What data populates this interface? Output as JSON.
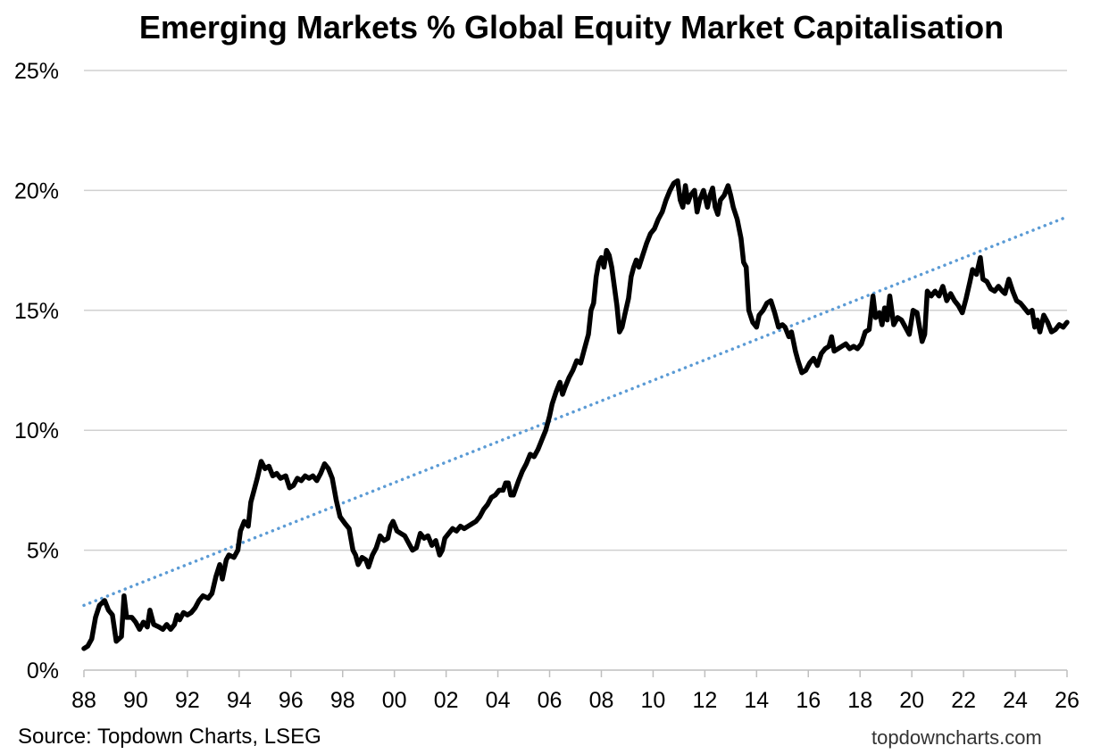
{
  "chart_data": {
    "type": "line",
    "title": "Emerging Markets % Global Equity Market Capitalisation",
    "xlabel": "",
    "ylabel": "",
    "x_tick_labels": [
      "88",
      "90",
      "92",
      "94",
      "96",
      "98",
      "00",
      "02",
      "04",
      "06",
      "08",
      "10",
      "12",
      "14",
      "16",
      "18",
      "20",
      "22",
      "24",
      "26"
    ],
    "x_ticks": [
      1988,
      1990,
      1992,
      1994,
      1996,
      1998,
      2000,
      2002,
      2004,
      2006,
      2008,
      2010,
      2012,
      2014,
      2016,
      2018,
      2020,
      2022,
      2024,
      2026
    ],
    "xlim": [
      1988,
      2026
    ],
    "y_tick_labels": [
      "0%",
      "5%",
      "10%",
      "15%",
      "20%",
      "25%"
    ],
    "y_ticks": [
      0,
      5,
      10,
      15,
      20,
      25
    ],
    "ylim": [
      0,
      25
    ],
    "grid": "horizontal",
    "series": [
      {
        "line_color": "#000000",
        "style": "solid",
        "points": [
          [
            1988.0,
            0.9
          ],
          [
            1988.15,
            1.0
          ],
          [
            1988.3,
            1.3
          ],
          [
            1988.45,
            2.2
          ],
          [
            1988.6,
            2.7
          ],
          [
            1988.8,
            2.9
          ],
          [
            1988.95,
            2.5
          ],
          [
            1989.1,
            2.3
          ],
          [
            1989.25,
            1.2
          ],
          [
            1989.45,
            1.4
          ],
          [
            1989.55,
            3.1
          ],
          [
            1989.65,
            2.2
          ],
          [
            1989.85,
            2.2
          ],
          [
            1990.0,
            2.0
          ],
          [
            1990.15,
            1.7
          ],
          [
            1990.3,
            2.0
          ],
          [
            1990.45,
            1.8
          ],
          [
            1990.55,
            2.5
          ],
          [
            1990.7,
            1.9
          ],
          [
            1990.9,
            1.8
          ],
          [
            1991.05,
            1.7
          ],
          [
            1991.2,
            1.9
          ],
          [
            1991.35,
            1.7
          ],
          [
            1991.5,
            1.9
          ],
          [
            1991.6,
            2.3
          ],
          [
            1991.7,
            2.1
          ],
          [
            1991.85,
            2.4
          ],
          [
            1992.0,
            2.3
          ],
          [
            1992.15,
            2.4
          ],
          [
            1992.3,
            2.6
          ],
          [
            1992.45,
            2.9
          ],
          [
            1992.6,
            3.1
          ],
          [
            1992.8,
            3.0
          ],
          [
            1992.95,
            3.2
          ],
          [
            1993.1,
            3.9
          ],
          [
            1993.25,
            4.4
          ],
          [
            1993.35,
            3.8
          ],
          [
            1993.5,
            4.6
          ],
          [
            1993.6,
            4.8
          ],
          [
            1993.8,
            4.7
          ],
          [
            1993.95,
            5.0
          ],
          [
            1994.05,
            5.8
          ],
          [
            1994.2,
            6.2
          ],
          [
            1994.35,
            6.0
          ],
          [
            1994.45,
            7.0
          ],
          [
            1994.55,
            7.4
          ],
          [
            1994.7,
            8.0
          ],
          [
            1994.85,
            8.7
          ],
          [
            1995.0,
            8.4
          ],
          [
            1995.15,
            8.5
          ],
          [
            1995.3,
            8.1
          ],
          [
            1995.45,
            8.2
          ],
          [
            1995.6,
            8.0
          ],
          [
            1995.8,
            8.1
          ],
          [
            1995.95,
            7.6
          ],
          [
            1996.1,
            7.7
          ],
          [
            1996.25,
            8.0
          ],
          [
            1996.4,
            7.9
          ],
          [
            1996.55,
            8.1
          ],
          [
            1996.7,
            8.0
          ],
          [
            1996.85,
            8.1
          ],
          [
            1997.0,
            7.9
          ],
          [
            1997.15,
            8.2
          ],
          [
            1997.3,
            8.6
          ],
          [
            1997.45,
            8.4
          ],
          [
            1997.6,
            8.0
          ],
          [
            1997.75,
            7.1
          ],
          [
            1997.9,
            6.4
          ],
          [
            1998.1,
            6.1
          ],
          [
            1998.25,
            5.9
          ],
          [
            1998.4,
            5.0
          ],
          [
            1998.5,
            4.8
          ],
          [
            1998.6,
            4.4
          ],
          [
            1998.75,
            4.7
          ],
          [
            1998.9,
            4.6
          ],
          [
            1999.0,
            4.3
          ],
          [
            1999.15,
            4.8
          ],
          [
            1999.3,
            5.1
          ],
          [
            1999.45,
            5.6
          ],
          [
            1999.6,
            5.4
          ],
          [
            1999.75,
            5.5
          ],
          [
            1999.85,
            6.0
          ],
          [
            1999.95,
            6.2
          ],
          [
            2000.1,
            5.8
          ],
          [
            2000.25,
            5.7
          ],
          [
            2000.4,
            5.6
          ],
          [
            2000.55,
            5.3
          ],
          [
            2000.7,
            5.0
          ],
          [
            2000.85,
            5.1
          ],
          [
            2001.0,
            5.7
          ],
          [
            2001.15,
            5.5
          ],
          [
            2001.3,
            5.6
          ],
          [
            2001.45,
            5.2
          ],
          [
            2001.6,
            5.4
          ],
          [
            2001.75,
            4.8
          ],
          [
            2001.85,
            5.0
          ],
          [
            2001.95,
            5.5
          ],
          [
            2002.1,
            5.7
          ],
          [
            2002.25,
            5.9
          ],
          [
            2002.4,
            5.8
          ],
          [
            2002.55,
            6.0
          ],
          [
            2002.7,
            5.9
          ],
          [
            2002.85,
            6.0
          ],
          [
            2003.0,
            6.1
          ],
          [
            2003.15,
            6.2
          ],
          [
            2003.3,
            6.4
          ],
          [
            2003.45,
            6.7
          ],
          [
            2003.6,
            6.9
          ],
          [
            2003.75,
            7.2
          ],
          [
            2003.9,
            7.3
          ],
          [
            2004.05,
            7.5
          ],
          [
            2004.2,
            7.5
          ],
          [
            2004.3,
            7.8
          ],
          [
            2004.4,
            7.8
          ],
          [
            2004.5,
            7.3
          ],
          [
            2004.6,
            7.3
          ],
          [
            2004.8,
            7.9
          ],
          [
            2004.95,
            8.3
          ],
          [
            2005.1,
            8.6
          ],
          [
            2005.25,
            9.0
          ],
          [
            2005.4,
            8.9
          ],
          [
            2005.55,
            9.2
          ],
          [
            2005.7,
            9.6
          ],
          [
            2005.85,
            10.0
          ],
          [
            2006.0,
            10.6
          ],
          [
            2006.1,
            11.1
          ],
          [
            2006.25,
            11.6
          ],
          [
            2006.4,
            12.0
          ],
          [
            2006.5,
            11.5
          ],
          [
            2006.6,
            11.8
          ],
          [
            2006.75,
            12.2
          ],
          [
            2006.9,
            12.5
          ],
          [
            2007.05,
            12.9
          ],
          [
            2007.2,
            12.8
          ],
          [
            2007.35,
            13.4
          ],
          [
            2007.5,
            14.0
          ],
          [
            2007.6,
            15.0
          ],
          [
            2007.7,
            15.3
          ],
          [
            2007.8,
            16.4
          ],
          [
            2007.9,
            17.0
          ],
          [
            2008.0,
            17.2
          ],
          [
            2008.1,
            16.8
          ],
          [
            2008.2,
            17.5
          ],
          [
            2008.3,
            17.3
          ],
          [
            2008.4,
            16.8
          ],
          [
            2008.5,
            16.0
          ],
          [
            2008.6,
            15.2
          ],
          [
            2008.7,
            14.1
          ],
          [
            2008.8,
            14.3
          ],
          [
            2008.9,
            14.8
          ],
          [
            2009.05,
            15.5
          ],
          [
            2009.15,
            16.4
          ],
          [
            2009.25,
            16.8
          ],
          [
            2009.35,
            17.1
          ],
          [
            2009.45,
            16.8
          ],
          [
            2009.6,
            17.3
          ],
          [
            2009.75,
            17.8
          ],
          [
            2009.9,
            18.2
          ],
          [
            2010.05,
            18.4
          ],
          [
            2010.2,
            18.8
          ],
          [
            2010.35,
            19.1
          ],
          [
            2010.5,
            19.6
          ],
          [
            2010.65,
            20.0
          ],
          [
            2010.8,
            20.3
          ],
          [
            2010.95,
            20.4
          ],
          [
            2011.05,
            19.6
          ],
          [
            2011.15,
            19.3
          ],
          [
            2011.25,
            20.2
          ],
          [
            2011.35,
            19.5
          ],
          [
            2011.45,
            19.8
          ],
          [
            2011.6,
            20.0
          ],
          [
            2011.7,
            19.1
          ],
          [
            2011.8,
            19.6
          ],
          [
            2011.95,
            20.0
          ],
          [
            2012.1,
            19.3
          ],
          [
            2012.2,
            19.8
          ],
          [
            2012.3,
            20.1
          ],
          [
            2012.4,
            19.3
          ],
          [
            2012.5,
            19.0
          ],
          [
            2012.6,
            19.6
          ],
          [
            2012.75,
            19.8
          ],
          [
            2012.9,
            20.2
          ],
          [
            2013.0,
            19.8
          ],
          [
            2013.1,
            19.3
          ],
          [
            2013.25,
            18.8
          ],
          [
            2013.4,
            18.0
          ],
          [
            2013.5,
            17.0
          ],
          [
            2013.6,
            16.8
          ],
          [
            2013.7,
            15.0
          ],
          [
            2013.85,
            14.5
          ],
          [
            2014.0,
            14.3
          ],
          [
            2014.1,
            14.8
          ],
          [
            2014.25,
            15.0
          ],
          [
            2014.4,
            15.3
          ],
          [
            2014.55,
            15.4
          ],
          [
            2014.7,
            14.9
          ],
          [
            2014.85,
            14.3
          ],
          [
            2015.0,
            14.4
          ],
          [
            2015.1,
            14.3
          ],
          [
            2015.25,
            13.9
          ],
          [
            2015.35,
            14.1
          ],
          [
            2015.5,
            13.3
          ],
          [
            2015.6,
            12.9
          ],
          [
            2015.75,
            12.4
          ],
          [
            2015.9,
            12.5
          ],
          [
            2016.05,
            12.8
          ],
          [
            2016.2,
            13.0
          ],
          [
            2016.35,
            12.7
          ],
          [
            2016.5,
            13.2
          ],
          [
            2016.65,
            13.4
          ],
          [
            2016.8,
            13.5
          ],
          [
            2016.9,
            13.9
          ],
          [
            2017.0,
            13.3
          ],
          [
            2017.15,
            13.4
          ],
          [
            2017.3,
            13.5
          ],
          [
            2017.45,
            13.6
          ],
          [
            2017.6,
            13.4
          ],
          [
            2017.75,
            13.5
          ],
          [
            2017.9,
            13.4
          ],
          [
            2018.05,
            13.6
          ],
          [
            2018.2,
            14.1
          ],
          [
            2018.35,
            14.2
          ],
          [
            2018.5,
            15.6
          ],
          [
            2018.6,
            14.7
          ],
          [
            2018.75,
            14.9
          ],
          [
            2018.85,
            14.4
          ],
          [
            2018.95,
            15.1
          ],
          [
            2019.05,
            14.6
          ],
          [
            2019.15,
            15.6
          ],
          [
            2019.3,
            14.4
          ],
          [
            2019.45,
            14.7
          ],
          [
            2019.6,
            14.6
          ],
          [
            2019.75,
            14.3
          ],
          [
            2019.9,
            14.0
          ],
          [
            2020.05,
            15.0
          ],
          [
            2020.2,
            14.9
          ],
          [
            2020.3,
            14.3
          ],
          [
            2020.4,
            13.7
          ],
          [
            2020.5,
            14.0
          ],
          [
            2020.6,
            15.8
          ],
          [
            2020.75,
            15.6
          ],
          [
            2020.9,
            15.8
          ],
          [
            2021.05,
            15.6
          ],
          [
            2021.2,
            16.0
          ],
          [
            2021.35,
            15.4
          ],
          [
            2021.5,
            15.7
          ],
          [
            2021.65,
            15.4
          ],
          [
            2021.8,
            15.2
          ],
          [
            2021.95,
            14.9
          ],
          [
            2022.1,
            15.5
          ],
          [
            2022.25,
            16.2
          ],
          [
            2022.35,
            16.7
          ],
          [
            2022.5,
            16.5
          ],
          [
            2022.65,
            17.2
          ],
          [
            2022.75,
            16.3
          ],
          [
            2022.9,
            16.2
          ],
          [
            2023.05,
            15.9
          ],
          [
            2023.2,
            15.8
          ],
          [
            2023.35,
            16.0
          ],
          [
            2023.5,
            15.8
          ],
          [
            2023.6,
            15.7
          ],
          [
            2023.75,
            16.3
          ],
          [
            2023.9,
            15.8
          ],
          [
            2024.05,
            15.4
          ],
          [
            2024.2,
            15.3
          ],
          [
            2024.35,
            15.1
          ],
          [
            2024.5,
            14.9
          ],
          [
            2024.65,
            15.0
          ],
          [
            2024.75,
            14.3
          ],
          [
            2024.85,
            14.6
          ],
          [
            2024.95,
            14.1
          ],
          [
            2025.1,
            14.8
          ],
          [
            2025.25,
            14.5
          ],
          [
            2025.4,
            14.1
          ],
          [
            2025.55,
            14.2
          ],
          [
            2025.7,
            14.4
          ],
          [
            2025.85,
            14.3
          ],
          [
            2026.0,
            14.5
          ]
        ]
      },
      {
        "line_color": "#5B9BD5",
        "style": "dotted",
        "points": [
          [
            1988.0,
            2.7
          ],
          [
            2026.0,
            18.9
          ]
        ]
      }
    ]
  },
  "source_note": "Source: Topdown Charts, LSEG",
  "watermark": "topdowncharts.com"
}
